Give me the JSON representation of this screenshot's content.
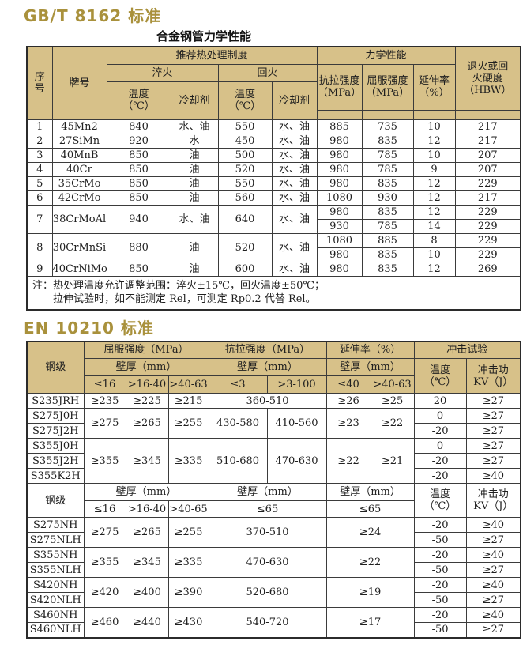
{
  "sections": [
    {
      "title": "GB/T 8162 标准"
    },
    {
      "title": "EN 10210 标准"
    }
  ],
  "colors": {
    "title_gold": "#a9913c",
    "header_tan": "#d7c189",
    "border_dark": "#3b3b3b",
    "text": "#202020"
  },
  "table1": {
    "caption": "合金钢管力学性能",
    "header": {
      "no": "序\n号",
      "grade": "牌号",
      "heat": "推荐热处理制度",
      "quench": "淬火",
      "temper": "回火",
      "temp": "温度\n（℃）",
      "coolant": "冷却剂",
      "mech": "力学性能",
      "tensile": "抗拉强度\n（MPa）",
      "yield": "屈服强度\n（MPa）",
      "elong": "延伸率\n（%）",
      "hardness": "退火或回\n火硬度\n（HBW）"
    },
    "rows": [
      {
        "no": "1",
        "grade": "45Mn2",
        "q_temp": "840",
        "q_cool": "水、油",
        "t_temp": "550",
        "t_cool": "水、油",
        "mech": [
          [
            "885",
            "735",
            "10",
            "217"
          ]
        ]
      },
      {
        "no": "2",
        "grade": "27SiMn",
        "q_temp": "920",
        "q_cool": "水",
        "t_temp": "450",
        "t_cool": "水、油",
        "mech": [
          [
            "980",
            "835",
            "12",
            "217"
          ]
        ]
      },
      {
        "no": "3",
        "grade": "40MnB",
        "q_temp": "850",
        "q_cool": "油",
        "t_temp": "500",
        "t_cool": "水、油",
        "mech": [
          [
            "980",
            "785",
            "10",
            "207"
          ]
        ]
      },
      {
        "no": "4",
        "grade": "40Cr",
        "q_temp": "850",
        "q_cool": "油",
        "t_temp": "520",
        "t_cool": "水、油",
        "mech": [
          [
            "980",
            "785",
            "9",
            "207"
          ]
        ]
      },
      {
        "no": "5",
        "grade": "35CrMo",
        "q_temp": "850",
        "q_cool": "油",
        "t_temp": "550",
        "t_cool": "水、油",
        "mech": [
          [
            "980",
            "835",
            "12",
            "229"
          ]
        ]
      },
      {
        "no": "6",
        "grade": "42CrMo",
        "q_temp": "850",
        "q_cool": "油",
        "t_temp": "560",
        "t_cool": "水、油",
        "mech": [
          [
            "1080",
            "930",
            "12",
            "217"
          ]
        ]
      },
      {
        "no": "7",
        "grade": "38CrMoAl",
        "q_temp": "940",
        "q_cool": "水、油",
        "t_temp": "640",
        "t_cool": "水、油",
        "mech": [
          [
            "980",
            "835",
            "12",
            "229"
          ],
          [
            "930",
            "785",
            "14",
            "229"
          ]
        ]
      },
      {
        "no": "8",
        "grade": "30CrMnSi",
        "q_temp": "880",
        "q_cool": "油",
        "t_temp": "520",
        "t_cool": "水、油",
        "mech": [
          [
            "1080",
            "885",
            "8",
            "229"
          ],
          [
            "980",
            "835",
            "10",
            "229"
          ]
        ]
      },
      {
        "no": "9",
        "grade": "40CrNiMoA",
        "q_temp": "850",
        "q_cool": "油",
        "t_temp": "600",
        "t_cool": "水、油",
        "mech": [
          [
            "980",
            "835",
            "12",
            "269"
          ]
        ]
      }
    ],
    "note": {
      "line1": "注：热处理温度允许调整范围：淬火±15℃，回火温度±50℃；",
      "line2": "拉伸试验时，如不能测定 Rel，可测定 Rp0.2 代替 Rel。"
    }
  },
  "table2": {
    "header": {
      "grade": "钢级",
      "yield_group": "屈服强度（MPa）",
      "tensile_group": "抗拉强度（MPa）",
      "elong_group": "延伸率（%）",
      "impact_group": "冲击试验",
      "wall": "壁厚（mm）",
      "temp": "温度\n（℃）",
      "energy": "冲击功\nKV（J）",
      "yield_cols": [
        "≤16",
        ">16-40",
        ">40-63"
      ],
      "tensile_cols": [
        "≤3",
        ">3-100"
      ],
      "elong_cols": [
        "≤40",
        ">40-63"
      ]
    },
    "top_groups": [
      {
        "grades": [
          "S235JRH"
        ],
        "yield": [
          "≥235",
          "≥225",
          "≥215"
        ],
        "tensile": [
          "360-510"
        ],
        "elong": [
          "≥26",
          "≥25"
        ],
        "impact": [
          [
            "20",
            "≥27"
          ]
        ]
      },
      {
        "grades": [
          "S275J0H",
          "S275J2H"
        ],
        "yield": [
          "≥275",
          "≥265",
          "≥255"
        ],
        "tensile": [
          "430-580",
          "410-560"
        ],
        "elong": [
          "≥23",
          "≥22"
        ],
        "impact": [
          [
            "0",
            "≥27"
          ],
          [
            "-20",
            "≥27"
          ]
        ]
      },
      {
        "grades": [
          "S355J0H",
          "S355J2H",
          "S355K2H"
        ],
        "yield": [
          "≥355",
          "≥345",
          "≥335"
        ],
        "tensile": [
          "510-680",
          "470-630"
        ],
        "elong": [
          "≥22",
          "≥21"
        ],
        "impact": [
          [
            "0",
            "≥27"
          ],
          [
            "-20",
            "≥27"
          ],
          [
            "-20",
            "≥40"
          ]
        ]
      }
    ],
    "mid_header": {
      "grade": "钢级",
      "wall": "壁厚（mm）",
      "yield_cols": [
        "≤16",
        ">16-40",
        ">40-65"
      ],
      "tensile_col": "≤65",
      "elong_col": "≤65",
      "temp": "温度\n（℃）",
      "energy": "冲击功\nKV（J）"
    },
    "bottom_groups": [
      {
        "grades": [
          "S275NH",
          "S275NLH"
        ],
        "yield": [
          "≥275",
          "≥265",
          "≥255"
        ],
        "tensile": "370-510",
        "elong": "≥24",
        "impact": [
          [
            "-20",
            "≥40"
          ],
          [
            "-50",
            "≥27"
          ]
        ]
      },
      {
        "grades": [
          "S355NH",
          "S355NLH"
        ],
        "yield": [
          "≥355",
          "≥345",
          "≥335"
        ],
        "tensile": "470-630",
        "elong": "≥22",
        "impact": [
          [
            "-20",
            "≥40"
          ],
          [
            "-50",
            "≥27"
          ]
        ]
      },
      {
        "grades": [
          "S420NH",
          "S420NLH"
        ],
        "yield": [
          "≥420",
          "≥400",
          "≥390"
        ],
        "tensile": "520-680",
        "elong": "≥19",
        "impact": [
          [
            "-20",
            "≥40"
          ],
          [
            "-50",
            "≥27"
          ]
        ]
      },
      {
        "grades": [
          "S460NH",
          "S460NLH"
        ],
        "yield": [
          "≥460",
          "≥440",
          "≥430"
        ],
        "tensile": "540-720",
        "elong": "≥17",
        "impact": [
          [
            "-20",
            "≥40"
          ],
          [
            "-50",
            "≥27"
          ]
        ]
      }
    ]
  }
}
